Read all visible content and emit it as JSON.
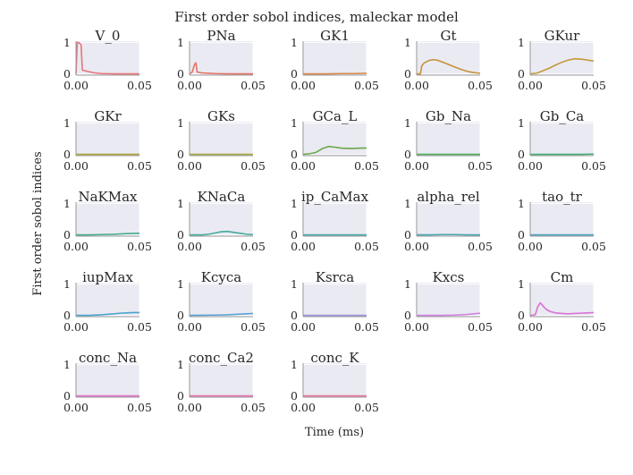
{
  "chart_data": {
    "type": "line",
    "title": "First order sobol indices, maleckar model",
    "xlabel": "Time (ms)",
    "ylabel": "First order sobol indices",
    "xlim": [
      0.0,
      0.05
    ],
    "ylim": [
      0,
      1
    ],
    "xticks": [
      "0.00",
      "0.05"
    ],
    "yticks": [
      "0",
      "1"
    ],
    "grid": true,
    "panels": [
      {
        "name": "V_0",
        "color": "#e8757a",
        "x": [
          0,
          0.001,
          0.0025,
          0.004,
          0.005,
          0.007,
          0.01,
          0.015,
          0.02,
          0.03,
          0.04,
          0.05
        ],
        "y": [
          0.0,
          1.0,
          0.99,
          0.92,
          0.12,
          0.1,
          0.07,
          0.03,
          0.01,
          0.0,
          0.0,
          0.0
        ]
      },
      {
        "name": "PNa",
        "color": "#e57165",
        "x": [
          0,
          0.002,
          0.004,
          0.005,
          0.006,
          0.007,
          0.01,
          0.015,
          0.02,
          0.03,
          0.04,
          0.05
        ],
        "y": [
          0.0,
          0.05,
          0.3,
          0.35,
          0.06,
          0.05,
          0.03,
          0.02,
          0.01,
          0.0,
          0.0,
          0.0
        ]
      },
      {
        "name": "GK1",
        "color": "#d6874a",
        "x": [
          0,
          0.01,
          0.02,
          0.03,
          0.04,
          0.05
        ],
        "y": [
          0.0,
          0.0,
          0.0,
          0.01,
          0.01,
          0.02
        ]
      },
      {
        "name": "Gt",
        "color": "#c7923a",
        "x": [
          0,
          0.003,
          0.004,
          0.006,
          0.01,
          0.013,
          0.016,
          0.02,
          0.025,
          0.03,
          0.035,
          0.04,
          0.045,
          0.05
        ],
        "y": [
          0.0,
          0.0,
          0.25,
          0.35,
          0.43,
          0.45,
          0.44,
          0.38,
          0.3,
          0.22,
          0.14,
          0.08,
          0.04,
          0.02
        ]
      },
      {
        "name": "GKur",
        "color": "#c19a3c",
        "x": [
          0,
          0.005,
          0.01,
          0.015,
          0.02,
          0.025,
          0.03,
          0.035,
          0.04,
          0.045,
          0.05
        ],
        "y": [
          0.0,
          0.02,
          0.1,
          0.18,
          0.28,
          0.37,
          0.44,
          0.48,
          0.47,
          0.44,
          0.41
        ]
      },
      {
        "name": "GKr",
        "color": "#aca33a",
        "x": [
          0,
          0.025,
          0.05
        ],
        "y": [
          0.0,
          0.0,
          0.0
        ]
      },
      {
        "name": "GKs",
        "color": "#a3a83c",
        "x": [
          0,
          0.025,
          0.05
        ],
        "y": [
          0.0,
          0.0,
          0.0
        ]
      },
      {
        "name": "GCa_L",
        "color": "#6aa84a",
        "x": [
          0,
          0.005,
          0.01,
          0.015,
          0.02,
          0.025,
          0.03,
          0.035,
          0.04,
          0.045,
          0.05
        ],
        "y": [
          0.0,
          0.02,
          0.06,
          0.18,
          0.25,
          0.23,
          0.2,
          0.19,
          0.19,
          0.2,
          0.2
        ]
      },
      {
        "name": "Gb_Na",
        "color": "#4fae5a",
        "x": [
          0,
          0.025,
          0.05
        ],
        "y": [
          0.0,
          0.0,
          0.0
        ]
      },
      {
        "name": "Gb_Ca",
        "color": "#43ad75",
        "x": [
          0,
          0.025,
          0.04,
          0.05
        ],
        "y": [
          0.0,
          0.0,
          0.0,
          0.01
        ]
      },
      {
        "name": "NaKMax",
        "color": "#44aa8c",
        "x": [
          0,
          0.01,
          0.02,
          0.03,
          0.04,
          0.05
        ],
        "y": [
          0.0,
          0.0,
          0.01,
          0.02,
          0.04,
          0.05
        ]
      },
      {
        "name": "KNaCa",
        "color": "#45aa9c",
        "x": [
          0,
          0.01,
          0.015,
          0.02,
          0.025,
          0.03,
          0.035,
          0.04,
          0.045,
          0.05
        ],
        "y": [
          0.0,
          0.0,
          0.02,
          0.06,
          0.1,
          0.11,
          0.08,
          0.05,
          0.02,
          0.01
        ]
      },
      {
        "name": "ip_CaMax",
        "color": "#46a7a6",
        "x": [
          0,
          0.025,
          0.05
        ],
        "y": [
          0.0,
          0.0,
          0.0
        ]
      },
      {
        "name": "alpha_rel",
        "color": "#47a5b0",
        "x": [
          0,
          0.01,
          0.02,
          0.03,
          0.04,
          0.05
        ],
        "y": [
          0.0,
          0.0,
          0.01,
          0.01,
          0.0,
          0.0
        ]
      },
      {
        "name": "tao_tr",
        "color": "#48a3bb",
        "x": [
          0,
          0.025,
          0.05
        ],
        "y": [
          0.0,
          0.0,
          0.0
        ]
      },
      {
        "name": "iupMax",
        "color": "#4aa2cc",
        "x": [
          0,
          0.01,
          0.02,
          0.03,
          0.035,
          0.04,
          0.045,
          0.05
        ],
        "y": [
          0.0,
          0.0,
          0.02,
          0.05,
          0.07,
          0.08,
          0.09,
          0.09
        ]
      },
      {
        "name": "Kcyca",
        "color": "#5aa0d8",
        "x": [
          0,
          0.02,
          0.03,
          0.04,
          0.05
        ],
        "y": [
          0.0,
          0.01,
          0.02,
          0.04,
          0.06
        ]
      },
      {
        "name": "Ksrca",
        "color": "#9a94dc",
        "x": [
          0,
          0.025,
          0.05
        ],
        "y": [
          0.0,
          0.0,
          0.0
        ]
      },
      {
        "name": "Kxcs",
        "color": "#cf7fdf",
        "x": [
          0,
          0.02,
          0.03,
          0.04,
          0.045,
          0.05
        ],
        "y": [
          0.0,
          0.0,
          0.01,
          0.03,
          0.05,
          0.07
        ]
      },
      {
        "name": "Cm",
        "color": "#dc6fd6",
        "x": [
          0,
          0.004,
          0.006,
          0.008,
          0.01,
          0.013,
          0.016,
          0.02,
          0.025,
          0.03,
          0.035,
          0.04,
          0.045,
          0.05
        ],
        "y": [
          0.0,
          0.02,
          0.28,
          0.4,
          0.3,
          0.18,
          0.12,
          0.08,
          0.06,
          0.05,
          0.06,
          0.07,
          0.08,
          0.09
        ]
      },
      {
        "name": "conc_Na",
        "color": "#e06ec6",
        "x": [
          0,
          0.025,
          0.05
        ],
        "y": [
          0.0,
          0.0,
          0.0
        ]
      },
      {
        "name": "conc_Ca2",
        "color": "#e66fb0",
        "x": [
          0,
          0.025,
          0.05
        ],
        "y": [
          0.0,
          0.0,
          0.0
        ]
      },
      {
        "name": "conc_K",
        "color": "#e8739a",
        "x": [
          0,
          0.025,
          0.05
        ],
        "y": [
          0.0,
          0.0,
          0.0
        ]
      }
    ]
  }
}
